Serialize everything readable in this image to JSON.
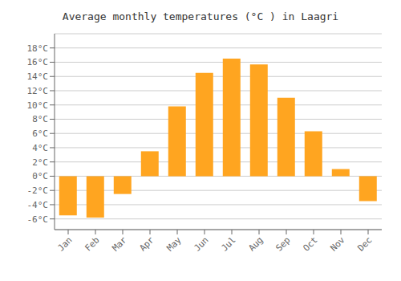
{
  "chart_data": {
    "type": "bar",
    "title": "Average monthly temperatures (°C ) in Laagri",
    "categories": [
      "Jan",
      "Feb",
      "Mar",
      "Apr",
      "May",
      "Jun",
      "Jul",
      "Aug",
      "Sep",
      "Oct",
      "Nov",
      "Dec"
    ],
    "values": [
      -5.5,
      -5.8,
      -2.5,
      3.5,
      9.8,
      14.5,
      16.5,
      15.7,
      11.0,
      6.3,
      1.0,
      -3.5
    ],
    "color": "#FFA520",
    "ylim": [
      -7.5,
      20
    ],
    "yticks": [
      {
        "value": -6,
        "label": "-6°C"
      },
      {
        "value": -4,
        "label": "-4°C"
      },
      {
        "value": -2,
        "label": "-2°C"
      },
      {
        "value": 0,
        "label": "0°C"
      },
      {
        "value": 2,
        "label": "2°C"
      },
      {
        "value": 4,
        "label": "4°C"
      },
      {
        "value": 6,
        "label": "6°C"
      },
      {
        "value": 8,
        "label": "8°C"
      },
      {
        "value": 10,
        "label": "10°C"
      },
      {
        "value": 12,
        "label": "12°C"
      },
      {
        "value": 14,
        "label": "14°C"
      },
      {
        "value": 16,
        "label": "16°C"
      },
      {
        "value": 18,
        "label": "18°C"
      }
    ],
    "grid": true
  }
}
